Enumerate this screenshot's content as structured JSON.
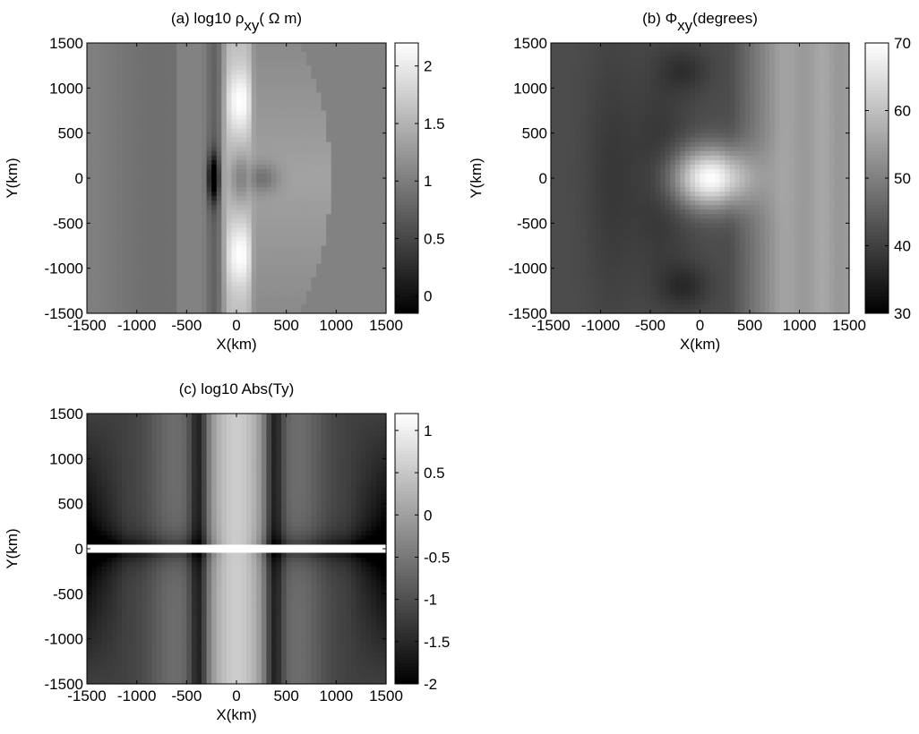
{
  "chart_data": [
    {
      "type": "heatmap",
      "panel": "(a)",
      "title": {
        "prefix": "(a) log10 ",
        "symbol": "ρ",
        "subscript": "xy",
        "unit": "( Ω m)"
      },
      "xlabel": "X(km)",
      "ylabel": "Y(km)",
      "xlim": [
        -1500,
        1500
      ],
      "ylim": [
        -1500,
        1500
      ],
      "x_ticks": [
        -1500,
        -1000,
        -500,
        0,
        500,
        1000,
        1500
      ],
      "y_ticks": [
        -1500,
        -1000,
        -500,
        0,
        500,
        1000,
        1500
      ],
      "x_tick_labels": [
        "-1500",
        "-1000",
        "-500",
        "0",
        "500",
        "1000",
        "1500"
      ],
      "y_tick_labels": [
        "-1500",
        "-1000",
        "-500",
        "0",
        "500",
        "1000",
        "1500"
      ],
      "colorbar": {
        "min": -0.15,
        "max": 2.2,
        "ticks": [
          0,
          0.5,
          1,
          1.5,
          2
        ],
        "tick_labels": [
          "0",
          "0.5",
          "1",
          "1.5",
          "2"
        ],
        "colormap": "gray"
      },
      "field_features": {
        "background": 1.05,
        "conductor_strip": {
          "x_center": -230,
          "half_width": 60,
          "value": -0.1
        },
        "resistive_strip": {
          "x_center": 20,
          "half_width": 160,
          "value": 2.1
        },
        "central_min": {
          "x": 250,
          "y": 0,
          "value": 0.85
        },
        "right_plateau": {
          "x_max": 950,
          "value": 1.35
        }
      }
    },
    {
      "type": "heatmap",
      "panel": "(b)",
      "title": {
        "prefix": "(b)   ",
        "symbol": "Φ",
        "subscript": "xy",
        "unit": "(degrees)"
      },
      "xlabel": "X(km)",
      "ylabel": "Y(km)",
      "xlim": [
        -1500,
        1500
      ],
      "ylim": [
        -1500,
        1500
      ],
      "x_ticks": [
        -1500,
        -1000,
        -500,
        0,
        500,
        1000,
        1500
      ],
      "y_ticks": [
        -1500,
        -1000,
        -500,
        0,
        500,
        1000,
        1500
      ],
      "x_tick_labels": [
        "-1500",
        "-1000",
        "-500",
        "0",
        "500",
        "1000",
        "1500"
      ],
      "y_tick_labels": [
        "-1500",
        "-1000",
        "-500",
        "0",
        "500",
        "1000",
        "1500"
      ],
      "colorbar": {
        "min": 30,
        "max": 70,
        "ticks": [
          30,
          40,
          50,
          60,
          70
        ],
        "tick_labels": [
          "30",
          "40",
          "50",
          "60",
          "70"
        ],
        "colormap": "gray"
      },
      "field_features": {
        "left_background": 42,
        "right_background": 55,
        "peak": {
          "x": 100,
          "y": 0,
          "value": 70
        }
      }
    },
    {
      "type": "heatmap",
      "panel": "(c)",
      "title": {
        "prefix": "(c) log10 Abs(Ty)",
        "symbol": "",
        "subscript": "",
        "unit": ""
      },
      "xlabel": "X(km)",
      "ylabel": "Y(km)",
      "xlim": [
        -1500,
        1500
      ],
      "ylim": [
        -1500,
        1500
      ],
      "x_ticks": [
        -1500,
        -1000,
        -500,
        0,
        500,
        1000,
        1500
      ],
      "y_ticks": [
        -1500,
        -1000,
        -500,
        0,
        500,
        1000,
        1500
      ],
      "x_tick_labels": [
        "-1500",
        "-1000",
        "-500",
        "0",
        "500",
        "1000",
        "1500"
      ],
      "y_tick_labels": [
        "-1500",
        "-1000",
        "-500",
        "0",
        "500",
        "1000",
        "1500"
      ],
      "colorbar": {
        "min": -2,
        "max": 1.2,
        "ticks": [
          -2,
          -1.5,
          -1,
          -0.5,
          0,
          0.5,
          1
        ],
        "tick_labels": [
          "-2",
          "-1.5",
          "-1",
          "-0.5",
          "0",
          "0.5",
          "1"
        ],
        "colormap": "gray"
      },
      "field_features": {
        "central_band": {
          "x_center": 0,
          "half_width": 300,
          "value": 0.6
        },
        "side_bands": {
          "x_centers": [
            -650,
            650
          ],
          "value": -0.3
        },
        "gap_near_y": 0,
        "edge_values": -2
      }
    }
  ]
}
